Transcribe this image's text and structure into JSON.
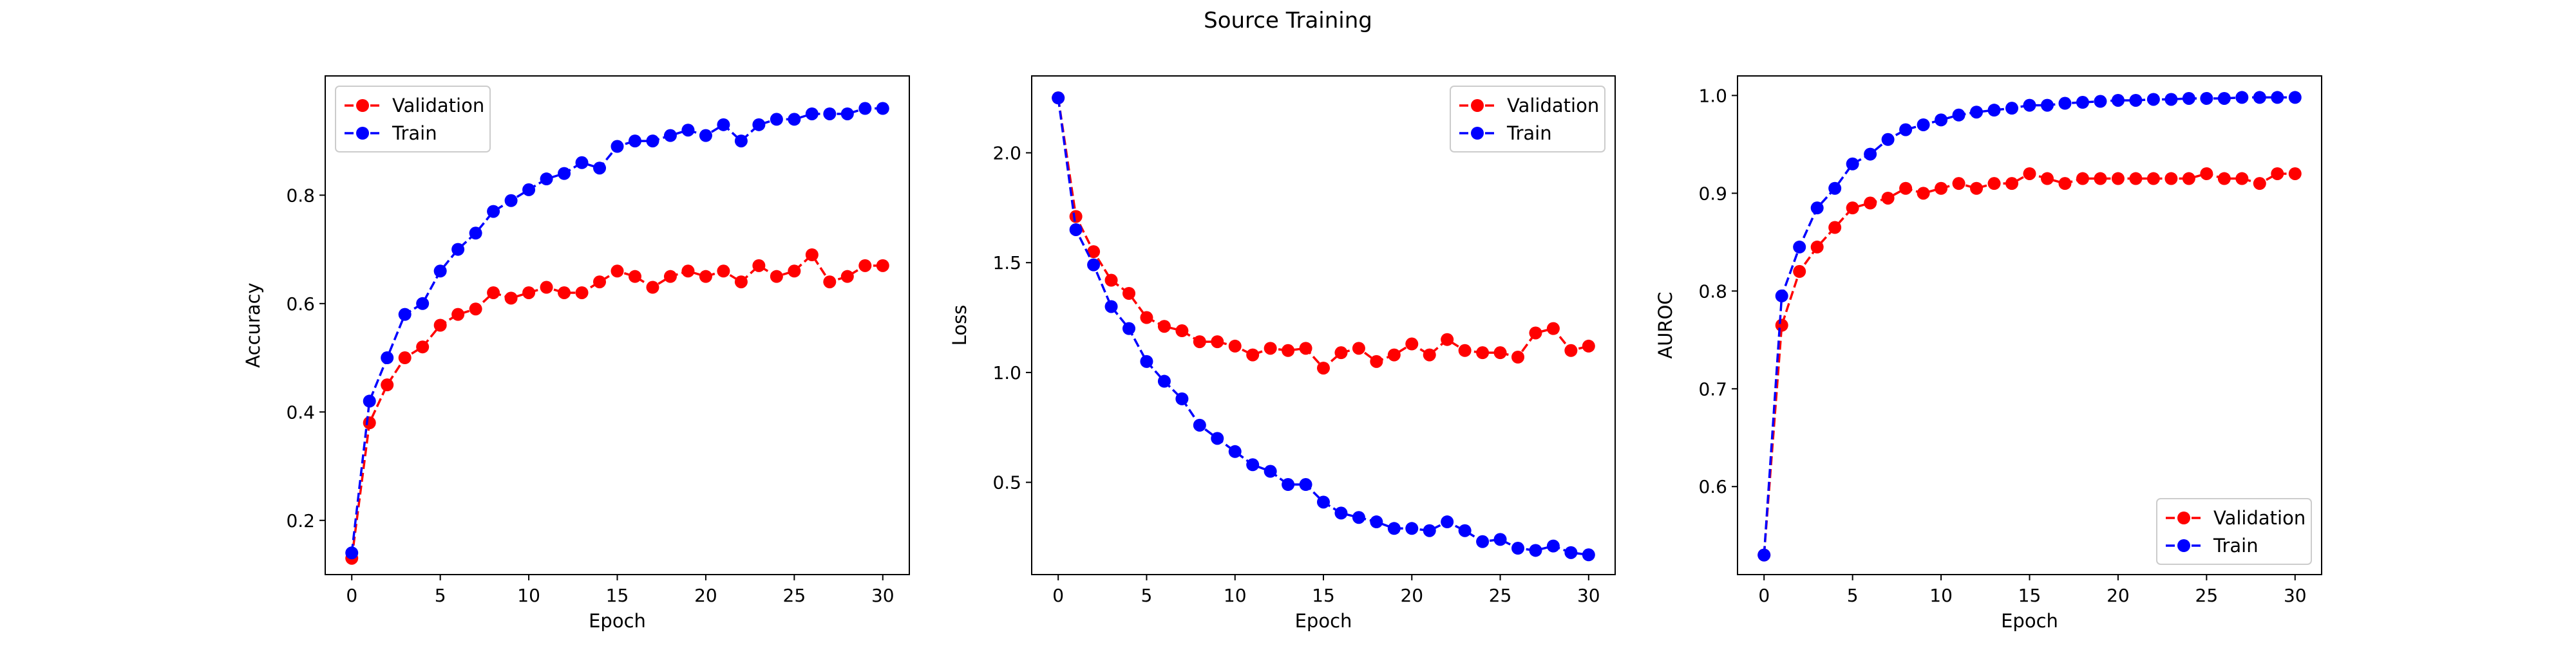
{
  "figure_title": "Source Training",
  "colors": {
    "validation": "#ff0000",
    "train": "#0000ff",
    "axes": "#000000"
  },
  "chart_data": [
    {
      "type": "line",
      "xlabel": "Epoch",
      "ylabel": "Accuracy",
      "xlim": [
        -1.5,
        31.5
      ],
      "ylim": [
        0.1,
        1.02
      ],
      "xticks": [
        0,
        5,
        10,
        15,
        20,
        25,
        30
      ],
      "yticks": [
        0.2,
        0.4,
        0.6,
        0.8
      ],
      "legend_position": "upper-left",
      "grid": false,
      "x": [
        0,
        1,
        2,
        3,
        4,
        5,
        6,
        7,
        8,
        9,
        10,
        11,
        12,
        13,
        14,
        15,
        16,
        17,
        18,
        19,
        20,
        21,
        22,
        23,
        24,
        25,
        26,
        27,
        28,
        29,
        30
      ],
      "series": [
        {
          "name": "Validation",
          "color": "#ff0000",
          "values": [
            0.13,
            0.38,
            0.45,
            0.5,
            0.52,
            0.56,
            0.58,
            0.59,
            0.62,
            0.61,
            0.62,
            0.63,
            0.62,
            0.62,
            0.64,
            0.66,
            0.65,
            0.63,
            0.65,
            0.66,
            0.65,
            0.66,
            0.64,
            0.67,
            0.65,
            0.66,
            0.69,
            0.64,
            0.65,
            0.67,
            0.67
          ]
        },
        {
          "name": "Train",
          "color": "#0000ff",
          "values": [
            0.14,
            0.42,
            0.5,
            0.58,
            0.6,
            0.66,
            0.7,
            0.73,
            0.77,
            0.79,
            0.81,
            0.83,
            0.84,
            0.86,
            0.85,
            0.89,
            0.9,
            0.9,
            0.91,
            0.92,
            0.91,
            0.93,
            0.9,
            0.93,
            0.94,
            0.94,
            0.95,
            0.95,
            0.95,
            0.96,
            0.96
          ]
        }
      ]
    },
    {
      "type": "line",
      "xlabel": "Epoch",
      "ylabel": "Loss",
      "xlim": [
        -1.5,
        31.5
      ],
      "ylim": [
        0.08,
        2.35
      ],
      "xticks": [
        0,
        5,
        10,
        15,
        20,
        25,
        30
      ],
      "yticks": [
        0.5,
        1.0,
        1.5,
        2.0
      ],
      "legend_position": "upper-right",
      "grid": false,
      "x": [
        0,
        1,
        2,
        3,
        4,
        5,
        6,
        7,
        8,
        9,
        10,
        11,
        12,
        13,
        14,
        15,
        16,
        17,
        18,
        19,
        20,
        21,
        22,
        23,
        24,
        25,
        26,
        27,
        28,
        29,
        30
      ],
      "series": [
        {
          "name": "Validation",
          "color": "#ff0000",
          "values": [
            2.25,
            1.71,
            1.55,
            1.42,
            1.36,
            1.25,
            1.21,
            1.19,
            1.14,
            1.14,
            1.12,
            1.08,
            1.11,
            1.1,
            1.11,
            1.02,
            1.09,
            1.11,
            1.05,
            1.08,
            1.13,
            1.08,
            1.15,
            1.1,
            1.09,
            1.09,
            1.07,
            1.18,
            1.2,
            1.1,
            1.12
          ]
        },
        {
          "name": "Train",
          "color": "#0000ff",
          "values": [
            2.25,
            1.65,
            1.49,
            1.3,
            1.2,
            1.05,
            0.96,
            0.88,
            0.76,
            0.7,
            0.64,
            0.58,
            0.55,
            0.49,
            0.49,
            0.41,
            0.36,
            0.34,
            0.32,
            0.29,
            0.29,
            0.28,
            0.32,
            0.28,
            0.23,
            0.24,
            0.2,
            0.19,
            0.21,
            0.18,
            0.17
          ]
        }
      ]
    },
    {
      "type": "line",
      "xlabel": "Epoch",
      "ylabel": "AUROC",
      "xlim": [
        -1.5,
        31.5
      ],
      "ylim": [
        0.51,
        1.02
      ],
      "xticks": [
        0,
        5,
        10,
        15,
        20,
        25,
        30
      ],
      "yticks": [
        0.6,
        0.7,
        0.8,
        0.9,
        1.0
      ],
      "legend_position": "lower-right",
      "grid": false,
      "x": [
        0,
        1,
        2,
        3,
        4,
        5,
        6,
        7,
        8,
        9,
        10,
        11,
        12,
        13,
        14,
        15,
        16,
        17,
        18,
        19,
        20,
        21,
        22,
        23,
        24,
        25,
        26,
        27,
        28,
        29,
        30
      ],
      "series": [
        {
          "name": "Validation",
          "color": "#ff0000",
          "values": [
            0.53,
            0.765,
            0.82,
            0.845,
            0.865,
            0.885,
            0.89,
            0.895,
            0.905,
            0.9,
            0.905,
            0.91,
            0.905,
            0.91,
            0.91,
            0.92,
            0.915,
            0.91,
            0.915,
            0.915,
            0.915,
            0.915,
            0.915,
            0.915,
            0.915,
            0.92,
            0.915,
            0.915,
            0.91,
            0.92,
            0.92
          ]
        },
        {
          "name": "Train",
          "color": "#0000ff",
          "values": [
            0.53,
            0.795,
            0.845,
            0.885,
            0.905,
            0.93,
            0.94,
            0.955,
            0.965,
            0.97,
            0.975,
            0.98,
            0.983,
            0.985,
            0.987,
            0.99,
            0.99,
            0.992,
            0.993,
            0.994,
            0.995,
            0.995,
            0.996,
            0.996,
            0.997,
            0.997,
            0.997,
            0.998,
            0.998,
            0.998,
            0.998
          ]
        }
      ]
    }
  ]
}
